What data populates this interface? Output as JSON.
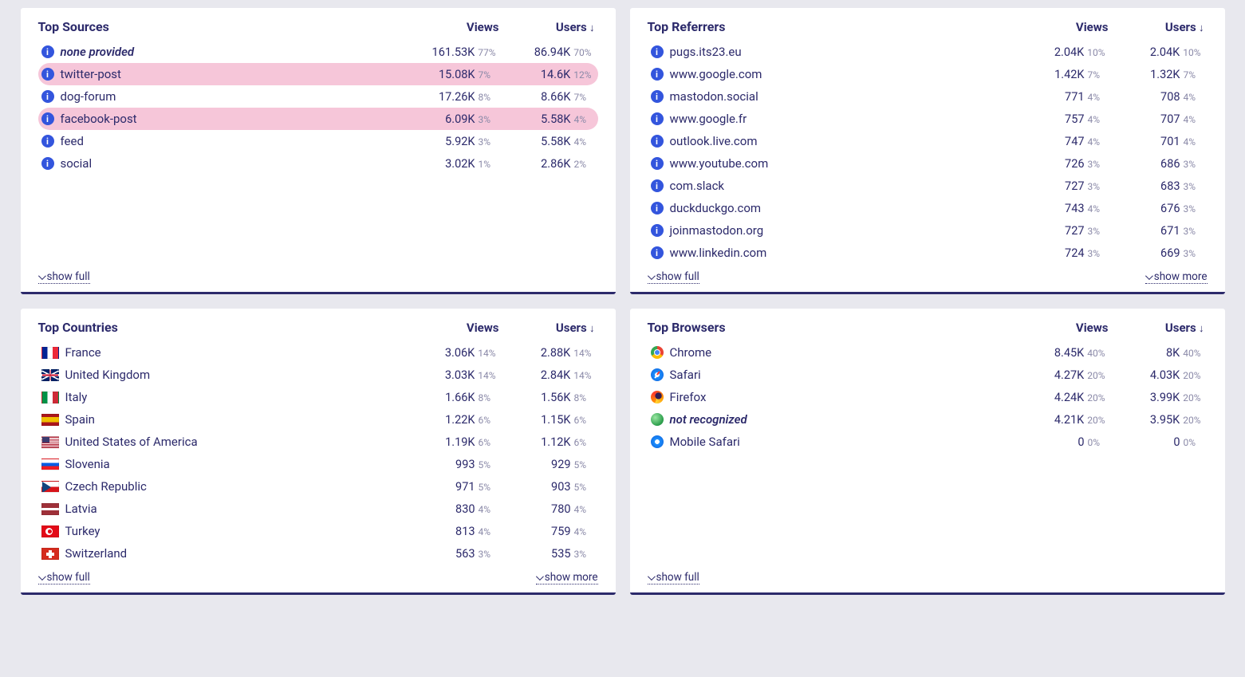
{
  "labels": {
    "views": "Views",
    "users": "Users",
    "show_full": "show full",
    "show_more": "show more"
  },
  "colors": {
    "text": "#2c2a6b",
    "page_bg": "#e8e8ee",
    "card_bg": "#ffffff",
    "highlight_row": "#f6c6d9",
    "muted": "#8a89a8",
    "info_icon": "#3355dd"
  },
  "cards": {
    "sources": {
      "title": "Top Sources",
      "show_more": false,
      "rows": [
        {
          "icon": "info",
          "label": "none provided",
          "italic": true,
          "highlight": false,
          "views": "161.53K",
          "views_pct": "77%",
          "users": "86.94K",
          "users_pct": "70%"
        },
        {
          "icon": "info",
          "label": "twitter-post",
          "italic": false,
          "highlight": true,
          "views": "15.08K",
          "views_pct": "7%",
          "users": "14.6K",
          "users_pct": "12%"
        },
        {
          "icon": "info",
          "label": "dog-forum",
          "italic": false,
          "highlight": false,
          "views": "17.26K",
          "views_pct": "8%",
          "users": "8.66K",
          "users_pct": "7%"
        },
        {
          "icon": "info",
          "label": "facebook-post",
          "italic": false,
          "highlight": true,
          "views": "6.09K",
          "views_pct": "3%",
          "users": "5.58K",
          "users_pct": "4%"
        },
        {
          "icon": "info",
          "label": "feed",
          "italic": false,
          "highlight": false,
          "views": "5.92K",
          "views_pct": "3%",
          "users": "5.58K",
          "users_pct": "4%"
        },
        {
          "icon": "info",
          "label": "social",
          "italic": false,
          "highlight": false,
          "views": "3.02K",
          "views_pct": "1%",
          "users": "2.86K",
          "users_pct": "2%"
        }
      ]
    },
    "referrers": {
      "title": "Top Referrers",
      "show_more": true,
      "rows": [
        {
          "icon": "info",
          "label": "pugs.its23.eu",
          "views": "2.04K",
          "views_pct": "10%",
          "users": "2.04K",
          "users_pct": "10%"
        },
        {
          "icon": "info",
          "label": "www.google.com",
          "views": "1.42K",
          "views_pct": "7%",
          "users": "1.32K",
          "users_pct": "7%"
        },
        {
          "icon": "info",
          "label": "mastodon.social",
          "views": "771",
          "views_pct": "4%",
          "users": "708",
          "users_pct": "4%"
        },
        {
          "icon": "info",
          "label": "www.google.fr",
          "views": "757",
          "views_pct": "4%",
          "users": "707",
          "users_pct": "4%"
        },
        {
          "icon": "info",
          "label": "outlook.live.com",
          "views": "747",
          "views_pct": "4%",
          "users": "701",
          "users_pct": "4%"
        },
        {
          "icon": "info",
          "label": "www.youtube.com",
          "views": "726",
          "views_pct": "3%",
          "users": "686",
          "users_pct": "3%"
        },
        {
          "icon": "info",
          "label": "com.slack",
          "views": "727",
          "views_pct": "3%",
          "users": "683",
          "users_pct": "3%"
        },
        {
          "icon": "info",
          "label": "duckduckgo.com",
          "views": "743",
          "views_pct": "4%",
          "users": "676",
          "users_pct": "3%"
        },
        {
          "icon": "info",
          "label": "joinmastodon.org",
          "views": "727",
          "views_pct": "3%",
          "users": "671",
          "users_pct": "3%"
        },
        {
          "icon": "info",
          "label": "www.linkedin.com",
          "views": "724",
          "views_pct": "3%",
          "users": "669",
          "users_pct": "3%"
        }
      ]
    },
    "countries": {
      "title": "Top Countries",
      "show_more": true,
      "rows": [
        {
          "icon": "flag",
          "flag": "fr",
          "label": "France",
          "views": "3.06K",
          "views_pct": "14%",
          "users": "2.88K",
          "users_pct": "14%"
        },
        {
          "icon": "flag",
          "flag": "gb",
          "label": "United Kingdom",
          "views": "3.03K",
          "views_pct": "14%",
          "users": "2.84K",
          "users_pct": "14%"
        },
        {
          "icon": "flag",
          "flag": "it",
          "label": "Italy",
          "views": "1.66K",
          "views_pct": "8%",
          "users": "1.56K",
          "users_pct": "8%"
        },
        {
          "icon": "flag",
          "flag": "es",
          "label": "Spain",
          "views": "1.22K",
          "views_pct": "6%",
          "users": "1.15K",
          "users_pct": "6%"
        },
        {
          "icon": "flag",
          "flag": "us",
          "label": "United States of America",
          "views": "1.19K",
          "views_pct": "6%",
          "users": "1.12K",
          "users_pct": "6%"
        },
        {
          "icon": "flag",
          "flag": "si",
          "label": "Slovenia",
          "views": "993",
          "views_pct": "5%",
          "users": "929",
          "users_pct": "5%"
        },
        {
          "icon": "flag",
          "flag": "cz",
          "label": "Czech Republic",
          "views": "971",
          "views_pct": "5%",
          "users": "903",
          "users_pct": "5%"
        },
        {
          "icon": "flag",
          "flag": "lv",
          "label": "Latvia",
          "views": "830",
          "views_pct": "4%",
          "users": "780",
          "users_pct": "4%"
        },
        {
          "icon": "flag",
          "flag": "tr",
          "label": "Turkey",
          "views": "813",
          "views_pct": "4%",
          "users": "759",
          "users_pct": "4%"
        },
        {
          "icon": "flag",
          "flag": "ch",
          "label": "Switzerland",
          "views": "563",
          "views_pct": "3%",
          "users": "535",
          "users_pct": "3%"
        }
      ]
    },
    "browsers": {
      "title": "Top Browsers",
      "show_more": false,
      "rows": [
        {
          "icon": "browser",
          "browser": "chrome",
          "label": "Chrome",
          "views": "8.45K",
          "views_pct": "40%",
          "users": "8K",
          "users_pct": "40%"
        },
        {
          "icon": "browser",
          "browser": "safari",
          "label": "Safari",
          "views": "4.27K",
          "views_pct": "20%",
          "users": "4.03K",
          "users_pct": "20%"
        },
        {
          "icon": "browser",
          "browser": "firefox",
          "label": "Firefox",
          "views": "4.24K",
          "views_pct": "20%",
          "users": "3.99K",
          "users_pct": "20%"
        },
        {
          "icon": "browser",
          "browser": "globe",
          "label": "not recognized",
          "italic": true,
          "views": "4.21K",
          "views_pct": "20%",
          "users": "3.95K",
          "users_pct": "20%"
        },
        {
          "icon": "browser",
          "browser": "msafari",
          "label": "Mobile Safari",
          "views": "0",
          "views_pct": "0%",
          "users": "0",
          "users_pct": "0%"
        }
      ]
    }
  }
}
